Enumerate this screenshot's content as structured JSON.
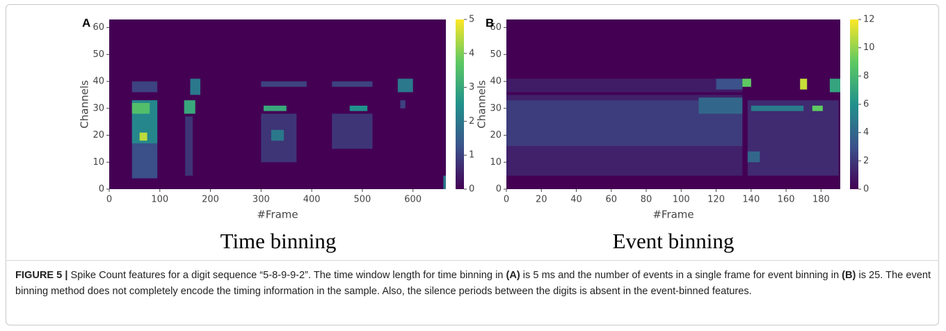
{
  "chart_data": [
    {
      "type": "heatmap",
      "panel": "A",
      "subtitle": "Time binning",
      "xlabel": "#Frame",
      "ylabel": "Channels",
      "xlim": [
        0,
        665
      ],
      "ylim": [
        0,
        63
      ],
      "xticks": [
        0,
        100,
        200,
        300,
        400,
        500,
        600
      ],
      "yticks": [
        0,
        10,
        20,
        30,
        40,
        50,
        60
      ],
      "clim": [
        0,
        5
      ],
      "cticks": [
        0,
        1,
        2,
        3,
        4,
        5
      ],
      "base": 0,
      "colorscale": [
        "#440154",
        "#3b528b",
        "#21918c",
        "#5ec962",
        "#fde725"
      ],
      "regions": [
        {
          "x": [
            45,
            95
          ],
          "y": [
            4,
            33
          ],
          "value": 1.2
        },
        {
          "x": [
            45,
            95
          ],
          "y": [
            17,
            33
          ],
          "value": 2.3
        },
        {
          "x": [
            45,
            80
          ],
          "y": [
            28,
            32
          ],
          "value": 3.5
        },
        {
          "x": [
            60,
            75
          ],
          "y": [
            18,
            21
          ],
          "value": 4.5
        },
        {
          "x": [
            45,
            95
          ],
          "y": [
            36,
            40
          ],
          "value": 1
        },
        {
          "x": [
            150,
            165
          ],
          "y": [
            5,
            27
          ],
          "value": 0.8
        },
        {
          "x": [
            148,
            170
          ],
          "y": [
            28,
            33
          ],
          "value": 3
        },
        {
          "x": [
            160,
            180
          ],
          "y": [
            35,
            41
          ],
          "value": 2
        },
        {
          "x": [
            300,
            370
          ],
          "y": [
            10,
            28
          ],
          "value": 0.8
        },
        {
          "x": [
            320,
            345
          ],
          "y": [
            18,
            22
          ],
          "value": 2
        },
        {
          "x": [
            305,
            350
          ],
          "y": [
            29,
            31
          ],
          "value": 3
        },
        {
          "x": [
            300,
            390
          ],
          "y": [
            38,
            40
          ],
          "value": 1
        },
        {
          "x": [
            440,
            520
          ],
          "y": [
            15,
            28
          ],
          "value": 0.8
        },
        {
          "x": [
            475,
            510
          ],
          "y": [
            29,
            31
          ],
          "value": 2.5
        },
        {
          "x": [
            440,
            520
          ],
          "y": [
            38,
            40
          ],
          "value": 1
        },
        {
          "x": [
            575,
            585
          ],
          "y": [
            30,
            33
          ],
          "value": 1
        },
        {
          "x": [
            570,
            600
          ],
          "y": [
            36,
            41
          ],
          "value": 2
        },
        {
          "x": [
            660,
            665
          ],
          "y": [
            0,
            5
          ],
          "value": 2
        }
      ]
    },
    {
      "type": "heatmap",
      "panel": "B",
      "subtitle": "Event binning",
      "xlabel": "#Frame",
      "ylabel": "Channels",
      "xlim": [
        0,
        191
      ],
      "ylim": [
        0,
        63
      ],
      "xticks": [
        0,
        20,
        40,
        60,
        80,
        100,
        120,
        140,
        160,
        180
      ],
      "yticks": [
        0,
        10,
        20,
        30,
        40,
        50,
        60
      ],
      "clim": [
        0,
        12
      ],
      "cticks": [
        0,
        2,
        4,
        6,
        8,
        10,
        12
      ],
      "base": 0,
      "colorscale": [
        "#440154",
        "#3b528b",
        "#21918c",
        "#5ec962",
        "#fde725"
      ],
      "regions": [
        {
          "x": [
            0,
            135
          ],
          "y": [
            5,
            35
          ],
          "value": 1.2
        },
        {
          "x": [
            0,
            135
          ],
          "y": [
            16,
            33
          ],
          "value": 2.2
        },
        {
          "x": [
            0,
            135
          ],
          "y": [
            36,
            41
          ],
          "value": 1
        },
        {
          "x": [
            110,
            135
          ],
          "y": [
            28,
            34
          ],
          "value": 4
        },
        {
          "x": [
            120,
            135
          ],
          "y": [
            37,
            41
          ],
          "value": 3
        },
        {
          "x": [
            135,
            140
          ],
          "y": [
            38,
            41
          ],
          "value": 9
        },
        {
          "x": [
            138,
            190
          ],
          "y": [
            5,
            33
          ],
          "value": 1.5
        },
        {
          "x": [
            138,
            145
          ],
          "y": [
            10,
            14
          ],
          "value": 4
        },
        {
          "x": [
            140,
            170
          ],
          "y": [
            29,
            31
          ],
          "value": 5
        },
        {
          "x": [
            168,
            172
          ],
          "y": [
            37,
            41
          ],
          "value": 11
        },
        {
          "x": [
            175,
            181
          ],
          "y": [
            29,
            31
          ],
          "value": 9
        },
        {
          "x": [
            185,
            191
          ],
          "y": [
            36,
            41
          ],
          "value": 7
        }
      ]
    }
  ],
  "caption": [
    {
      "text": "FIGURE 5 |",
      "bold": true
    },
    {
      "text": " Spike Count features for a digit sequence “5-8-9-9-2”. The time window length for time binning in "
    },
    {
      "text": "(A)",
      "bold": true
    },
    {
      "text": " is 5 ms and the number of events in a single frame for event binning in "
    },
    {
      "text": "(B)",
      "bold": true
    },
    {
      "text": " is 25. The event binning method does not completely encode the timing information in the sample. Also, the silence periods between the digits is absent in the event-binned features."
    }
  ]
}
